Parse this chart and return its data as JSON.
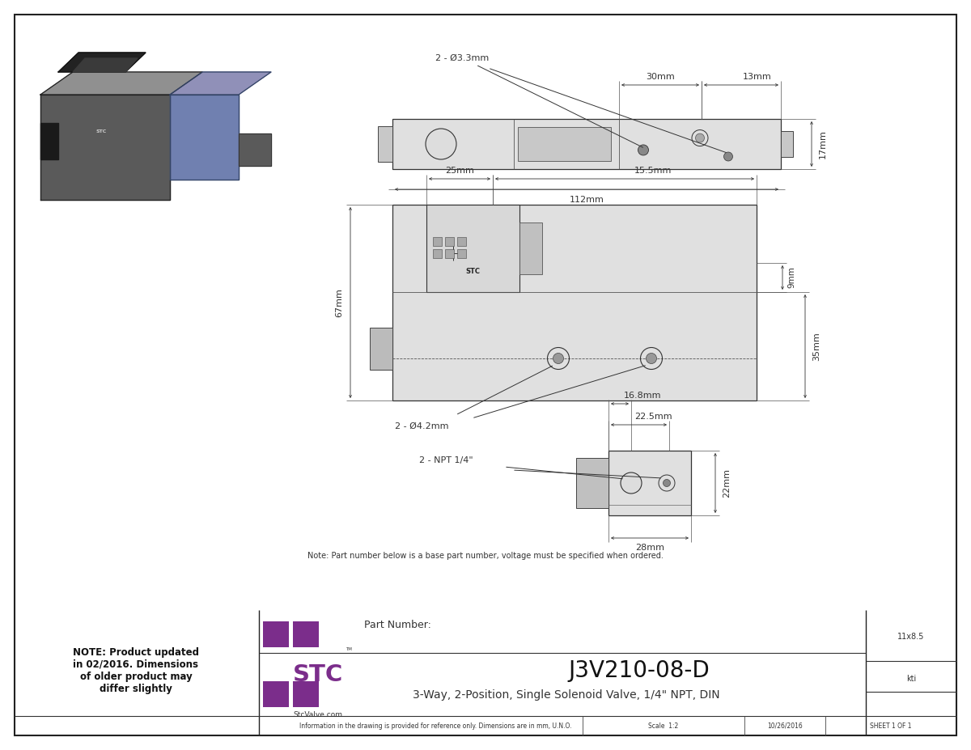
{
  "bg_color": "#ffffff",
  "dim_color": "#333333",
  "purple_color": "#7B2D8B",
  "note_text": "Note: Part number below is a base part number, voltage must be specified when ordered.",
  "part_number_label": "Part Number:",
  "part_number": "J3V210-08-D",
  "description": "3-Way, 2-Position, Single Solenoid Valve, 1/4\" NPT, DIN",
  "size_label": "11x8.5",
  "initials": "kti",
  "info_text": "Information in the drawing is provided for reference only. Dimensions are in mm, U.N.O.",
  "scale_text": "Scale  1:2",
  "date_text": "10/26/2016",
  "sheet_text": "SHEET 1 OF 1",
  "note_left": "NOTE: Product updated\nin 02/2016. Dimensions\nof older product may\ndiffer slightly",
  "stc_url": "StcValve.com",
  "label_112": "112mm",
  "label_30": "30mm",
  "label_13": "13mm",
  "label_17": "17mm",
  "label_hole_top": "2 - Ø3.3mm",
  "label_67": "67mm",
  "label_25": "25mm",
  "label_15_5": "15.5mm",
  "label_9": "9mm",
  "label_35": "35mm",
  "label_hole_front": "2 - Ø4.2mm",
  "label_22_5": "22.5mm",
  "label_16_8": "16.8mm",
  "label_22": "22mm",
  "label_28": "28mm",
  "label_npt": "2 - NPT 1/4\""
}
